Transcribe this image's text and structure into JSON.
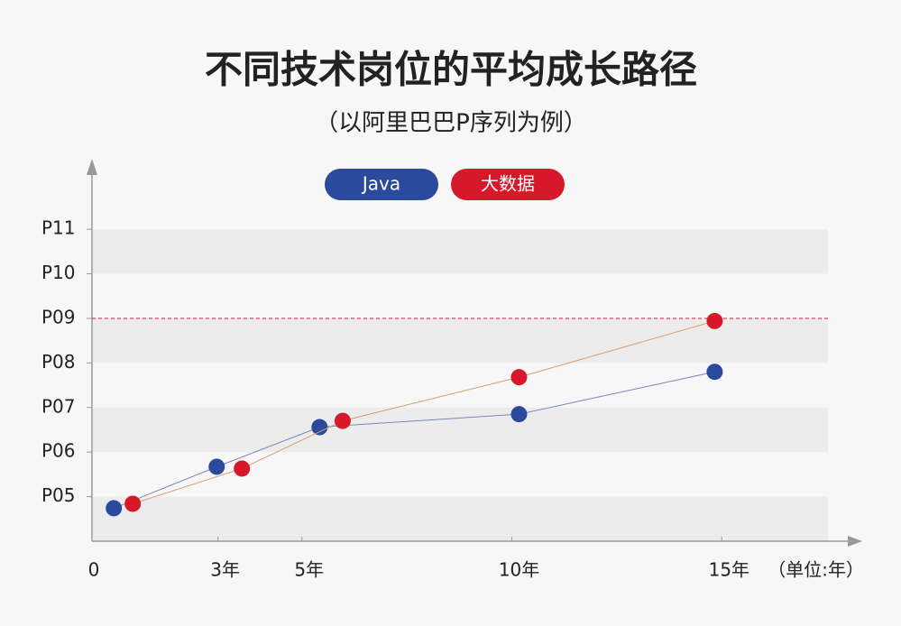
{
  "chart_data": {
    "type": "line",
    "title": "不同技术岗位的平均成长路径",
    "subtitle": "（以阿里巴巴P序列为例）",
    "annotation": "（单位:年）",
    "series": [
      {
        "name": "Java",
        "color": "#2b4a9e",
        "line_color": "#7a86b8",
        "x": [
          0.52,
          2.97,
          5.42,
          10.17,
          14.83
        ],
        "values": [
          4.74,
          5.67,
          6.56,
          6.85,
          7.8
        ]
      },
      {
        "name": "大数据",
        "color": "#d7182a",
        "line_color": "#d9a070",
        "x": [
          0.97,
          3.57,
          5.97,
          10.17,
          14.83
        ],
        "values": [
          4.84,
          5.63,
          6.7,
          7.68,
          8.94
        ]
      }
    ],
    "xlim": [
      0,
      18
    ],
    "xticks": [
      0,
      {
        "value": 3,
        "label": "3年"
      },
      {
        "value": 5,
        "label": "5年"
      },
      {
        "value": 10,
        "label": "10年"
      },
      {
        "value": 15,
        "label": "15年"
      }
    ],
    "ylim": [
      4,
      12.5
    ],
    "yticks": [
      {
        "value": 5,
        "label": "P05"
      },
      {
        "value": 6,
        "label": "P06"
      },
      {
        "value": 7,
        "label": "P07"
      },
      {
        "value": 8,
        "label": "P08"
      },
      {
        "value": 9,
        "label": "P09"
      },
      {
        "value": 10,
        "label": "P10"
      },
      {
        "value": 11,
        "label": "P11"
      }
    ],
    "reference_line": {
      "value": 9,
      "color": "#d7182a"
    }
  }
}
